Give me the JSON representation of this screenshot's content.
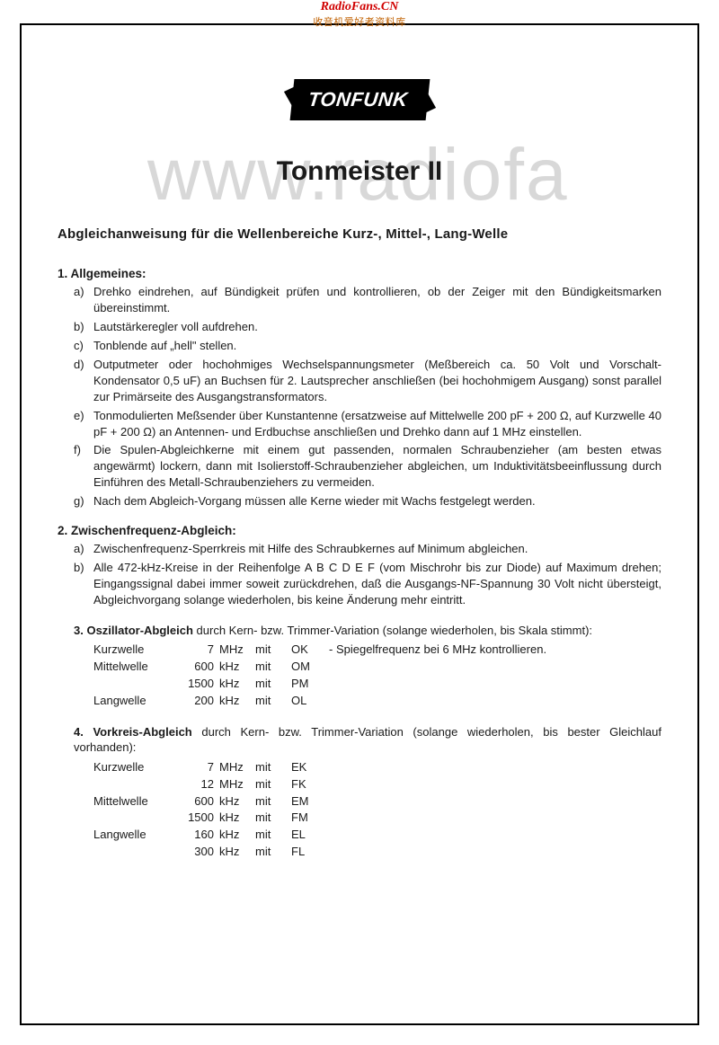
{
  "header": {
    "site_name": "RadioFans.CN",
    "site_tag": "收音机爱好者资料库"
  },
  "watermark": "www.radiofa",
  "logo_text": "TONFUNK",
  "title": "Tonmeister II",
  "subtitle": "Abgleichanweisung für die Wellenbereiche Kurz-, Mittel-, Lang-Welle",
  "section1": {
    "heading": "1. Allgemeines:",
    "items": [
      {
        "label": "a)",
        "text": "Drehko eindrehen, auf Bündigkeit prüfen und kontrollieren, ob der Zeiger mit den Bündigkeitsmarken übereinstimmt."
      },
      {
        "label": "b)",
        "text": "Lautstärkeregler voll aufdrehen."
      },
      {
        "label": "c)",
        "text": "Tonblende auf „hell\" stellen."
      },
      {
        "label": "d)",
        "text": "Outputmeter oder hochohmiges Wechselspannungsmeter (Meßbereich ca. 50 Volt und Vorschalt-Kondensator 0,5 uF) an Buchsen für 2. Lautsprecher anschließen (bei hochohmigem Ausgang) sonst parallel zur Primärseite des Ausgangstransformators."
      },
      {
        "label": "e)",
        "text": "Tonmodulierten Meßsender über Kunstantenne (ersatzweise auf Mittelwelle 200 pF + 200 Ω, auf Kurzwelle 40 pF + 200 Ω) an Antennen- und Erdbuchse anschließen und Drehko dann auf 1 MHz einstellen."
      },
      {
        "label": "f)",
        "text": "Die Spulen-Abgleichkerne mit einem gut passenden, normalen Schraubenzieher (am besten etwas angewärmt) lockern, dann mit Isolierstoff-Schraubenzieher abgleichen, um Induktivitätsbeeinflussung durch Einführen des Metall-Schraubenziehers zu vermeiden."
      },
      {
        "label": "g)",
        "text": "Nach dem Abgleich-Vorgang müssen alle Kerne wieder mit Wachs festgelegt werden."
      }
    ]
  },
  "section2": {
    "heading": "2. Zwischenfrequenz-Abgleich:",
    "items": [
      {
        "label": "a)",
        "text": "Zwischenfrequenz-Sperrkreis mit Hilfe des Schraubkernes auf Minimum abgleichen."
      },
      {
        "label": "b)",
        "text": "Alle 472-kHz-Kreise in der Reihenfolge A B C D E F (vom Mischrohr bis zur Diode) auf Maximum drehen; Eingangssignal dabei immer soweit zurückdrehen, daß die Ausgangs-NF-Spannung 30 Volt nicht übersteigt, Abgleichvorgang solange wiederholen, bis keine Änderung mehr eintritt."
      }
    ]
  },
  "section3": {
    "heading_bold": "3. Oszillator-Abgleich",
    "heading_rest": " durch Kern- bzw. Trimmer-Variation (solange wiederholen, bis Skala stimmt):",
    "rows": [
      {
        "band": "Kurzwelle",
        "freq": "7",
        "unit": "MHz",
        "mit": "mit",
        "code": "OK",
        "note": "-   Spiegelfrequenz bei 6 MHz kontrollieren."
      },
      {
        "band": "Mittelwelle",
        "freq": "600",
        "unit": "kHz",
        "mit": "mit",
        "code": "OM",
        "note": ""
      },
      {
        "band": "",
        "freq": "1500",
        "unit": "kHz",
        "mit": "mit",
        "code": "PM",
        "note": ""
      },
      {
        "band": "Langwelle",
        "freq": "200",
        "unit": "kHz",
        "mit": "mit",
        "code": "OL",
        "note": ""
      }
    ]
  },
  "section4": {
    "heading_bold": "4. Vorkreis-Abgleich",
    "heading_rest": " durch Kern- bzw. Trimmer-Variation (solange wiederholen, bis bester Gleichlauf vorhanden):",
    "rows": [
      {
        "band": "Kurzwelle",
        "freq": "7",
        "unit": "MHz",
        "mit": "mit",
        "code": "EK"
      },
      {
        "band": "",
        "freq": "12",
        "unit": "MHz",
        "mit": "mit",
        "code": "FK"
      },
      {
        "band": "Mittelwelle",
        "freq": "600",
        "unit": "kHz",
        "mit": "mit",
        "code": "EM"
      },
      {
        "band": "",
        "freq": "1500",
        "unit": "kHz",
        "mit": "mit",
        "code": "FM"
      },
      {
        "band": "Langwelle",
        "freq": "160",
        "unit": "kHz",
        "mit": "mit",
        "code": "EL"
      },
      {
        "band": "",
        "freq": "300",
        "unit": "kHz",
        "mit": "mit",
        "code": "FL"
      }
    ]
  }
}
